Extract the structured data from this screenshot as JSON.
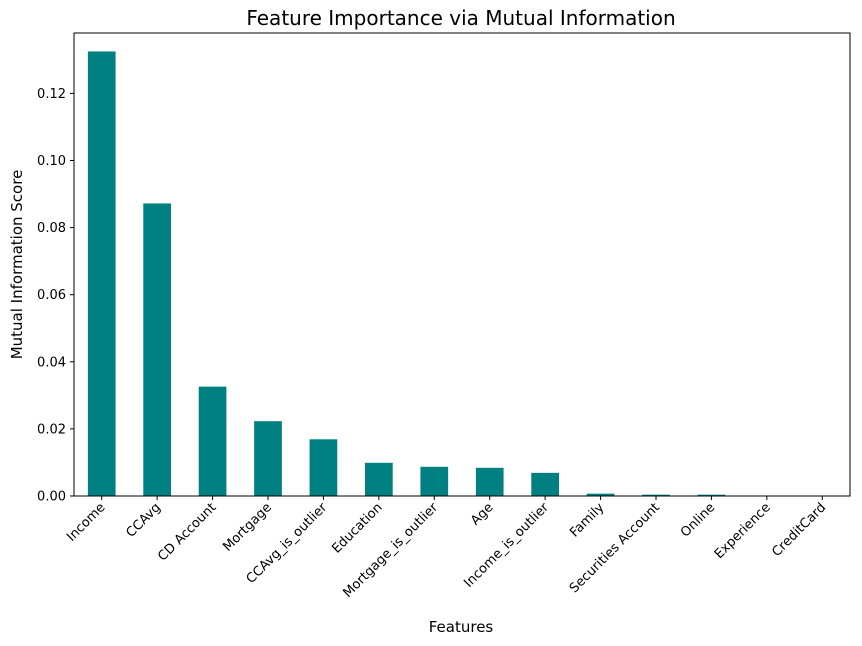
{
  "chart_data": {
    "type": "bar",
    "title": "Feature Importance via Mutual Information",
    "xlabel": "Features",
    "ylabel": "Mutual Information Score",
    "categories": [
      "Income",
      "CCAvg",
      "CD Account",
      "Mortgage",
      "CCAvg_is_outlier",
      "Education",
      "Mortgage_is_outlier",
      "Age",
      "Income_is_outlier",
      "Family",
      "Securities Account",
      "Online",
      "Experience",
      "CreditCard"
    ],
    "values": [
      0.1325,
      0.0872,
      0.0326,
      0.0223,
      0.0169,
      0.0099,
      0.0087,
      0.0084,
      0.0069,
      0.0007,
      0.0004,
      0.0004,
      0.0,
      0.0
    ],
    "ylim": [
      0,
      0.138
    ],
    "yticks": [
      "0.00",
      "0.02",
      "0.04",
      "0.06",
      "0.08",
      "0.10",
      "0.12"
    ],
    "bar_color": "#008080",
    "grid": false,
    "legend": "none"
  }
}
